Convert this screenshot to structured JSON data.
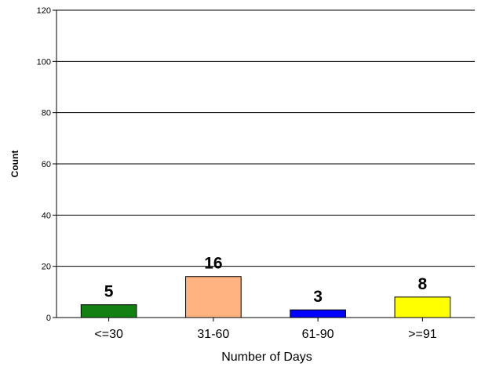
{
  "chart_data": {
    "type": "bar",
    "categories": [
      "<=30",
      "31-60",
      "61-90",
      ">=91"
    ],
    "values": [
      5,
      16,
      3,
      8
    ],
    "data_labels": [
      "5",
      "16",
      "3",
      "8"
    ],
    "colors": [
      "#138013",
      "#ffb380",
      "#0000ff",
      "#ffff00"
    ],
    "xlabel": "Number of Days",
    "ylabel": "Count",
    "ylim": [
      0,
      120
    ],
    "yticks": [
      0,
      20,
      40,
      60,
      80,
      100,
      120
    ],
    "grid": true,
    "legend": false
  }
}
